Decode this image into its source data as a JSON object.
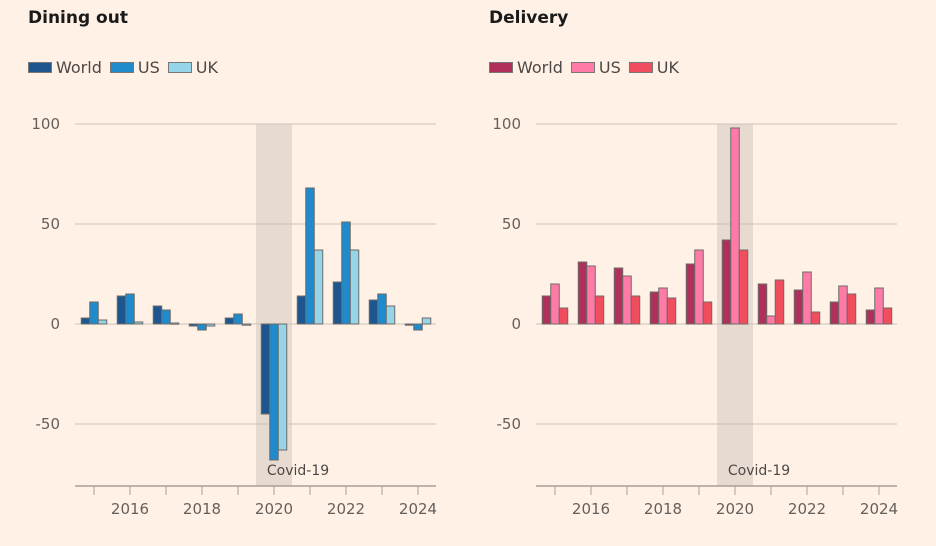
{
  "chart_data": [
    {
      "type": "bar",
      "title": "Dining out",
      "xlabel": "",
      "ylabel": "",
      "categories": [
        "2015",
        "2016",
        "2017",
        "2018",
        "2019",
        "2020",
        "2021",
        "2022",
        "2023",
        "2024"
      ],
      "x_tick_labels": [
        "2016",
        "2018",
        "2020",
        "2022",
        "2024"
      ],
      "y_ticks": [
        100,
        50,
        0,
        -50
      ],
      "ylim": [
        -81,
        100
      ],
      "grid": true,
      "legend": "top-left",
      "series": [
        {
          "name": "World",
          "color": "#1e558c",
          "values": [
            3,
            14,
            9,
            -1,
            3,
            -45,
            14,
            21,
            12,
            -0.5
          ]
        },
        {
          "name": "US",
          "color": "#1f8bcc",
          "values": [
            11,
            15,
            7,
            -3,
            5,
            -68,
            68,
            51,
            15,
            -3
          ]
        },
        {
          "name": "UK",
          "color": "#96d4e8",
          "values": [
            2,
            1,
            0.5,
            -1,
            -0.5,
            -63,
            37,
            37,
            9,
            3
          ]
        }
      ],
      "annotations": [
        {
          "label": "Covid-19",
          "shaded_category": "2020"
        }
      ]
    },
    {
      "type": "bar",
      "title": "Delivery",
      "xlabel": "",
      "ylabel": "",
      "categories": [
        "2015",
        "2016",
        "2017",
        "2018",
        "2019",
        "2020",
        "2021",
        "2022",
        "2023",
        "2024"
      ],
      "x_tick_labels": [
        "2016",
        "2018",
        "2020",
        "2022",
        "2024"
      ],
      "y_ticks": [
        100,
        50,
        0,
        -50
      ],
      "ylim": [
        -81,
        100
      ],
      "grid": true,
      "legend": "top-left",
      "series": [
        {
          "name": "World",
          "color": "#b0305c",
          "values": [
            14,
            31,
            28,
            16,
            30,
            42,
            20,
            17,
            11,
            7
          ]
        },
        {
          "name": "US",
          "color": "#ff7aa6",
          "values": [
            20,
            29,
            24,
            18,
            37,
            98,
            4,
            26,
            19,
            18
          ]
        },
        {
          "name": "UK",
          "color": "#f04e5e",
          "values": [
            8,
            14,
            14,
            13,
            11,
            37,
            22,
            6,
            15,
            8
          ]
        }
      ],
      "annotations": [
        {
          "label": "Covid-19",
          "shaded_category": "2020"
        }
      ]
    }
  ]
}
